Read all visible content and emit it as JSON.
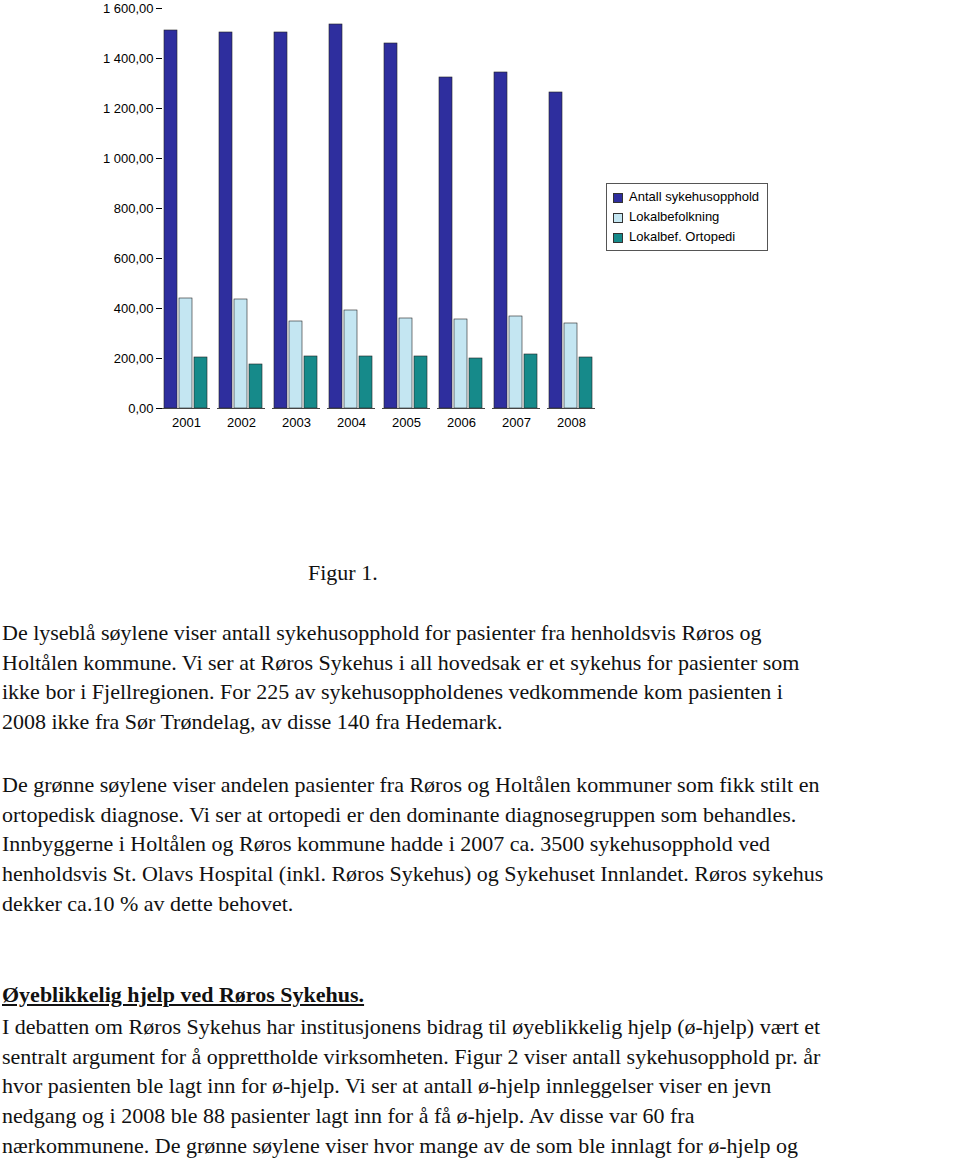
{
  "chart_data": {
    "type": "bar",
    "categories": [
      "2001",
      "2002",
      "2003",
      "2004",
      "2005",
      "2006",
      "2007",
      "2008"
    ],
    "series": [
      {
        "name": "Antall sykehusopphold",
        "color": "#2e2e9e",
        "values": [
          1512,
          1504,
          1504,
          1536,
          1460,
          1324,
          1344,
          1264
        ]
      },
      {
        "name": "Lokalbefolkning",
        "color": "#c4e6f2",
        "values": [
          440,
          436,
          348,
          392,
          360,
          356,
          368,
          340
        ]
      },
      {
        "name": "Lokalbef. Ortopedi",
        "color": "#168a8a",
        "values": [
          204,
          176,
          208,
          208,
          208,
          200,
          216,
          204
        ]
      }
    ],
    "ylim": [
      0,
      1600
    ],
    "yticks": [
      {
        "value": 0,
        "label": "0,00"
      },
      {
        "value": 200,
        "label": "200,00"
      },
      {
        "value": 400,
        "label": "400,00"
      },
      {
        "value": 600,
        "label": "600,00"
      },
      {
        "value": 800,
        "label": "800,00"
      },
      {
        "value": 1000,
        "label": "1 000,00"
      },
      {
        "value": 1200,
        "label": "1 200,00"
      },
      {
        "value": 1400,
        "label": "1 400,00"
      },
      {
        "value": 1600,
        "label": "1 600,00"
      }
    ],
    "grid": false,
    "legend": "right"
  },
  "document": {
    "caption": "Figur 1.",
    "paragraph_1": [
      "De lyseblå søylene viser antall sykehusopphold for pasienter fra henholdsvis Røros og",
      "Holtålen kommune. Vi ser at Røros Sykehus i all hovedsak er et sykehus for pasienter som",
      "ikke bor i Fjellregionen. For 225 av sykehusoppholdenes vedkommende kom pasienten i",
      "2008 ikke fra Sør Trøndelag, av disse 140 fra Hedemark."
    ],
    "paragraph_2": [
      "De grønne søylene viser andelen pasienter fra Røros og Holtålen kommuner som fikk stilt en",
      "ortopedisk diagnose. Vi ser at ortopedi er den dominante diagnosegruppen som behandles.",
      "Innbyggerne i Holtålen og Røros kommune hadde i 2007 ca. 3500 sykehusopphold ved",
      "henholdsvis St. Olavs Hospital (inkl. Røros Sykehus) og Sykehuset Innlandet. Røros sykehus",
      "dekker ca.10 % av dette behovet."
    ],
    "heading": "Øyeblikkelig hjelp ved Røros Sykehus.",
    "paragraph_3": [
      "I debatten om Røros Sykehus har institusjonens bidrag til øyeblikkelig hjelp (ø-hjelp) vært et",
      "sentralt argument for å opprettholde virksomheten. Figur 2 viser antall sykehusopphold pr. år",
      "hvor pasienten ble lagt inn for ø-hjelp. Vi ser at antall ø-hjelp innleggelser viser en jevn",
      "nedgang og i 2008 ble 88 pasienter lagt inn for å få ø-hjelp. Av disse var 60 fra",
      "nærkommunene. De grønne søylene viser hvor mange av de som ble innlagt for ø-hjelp og"
    ]
  }
}
